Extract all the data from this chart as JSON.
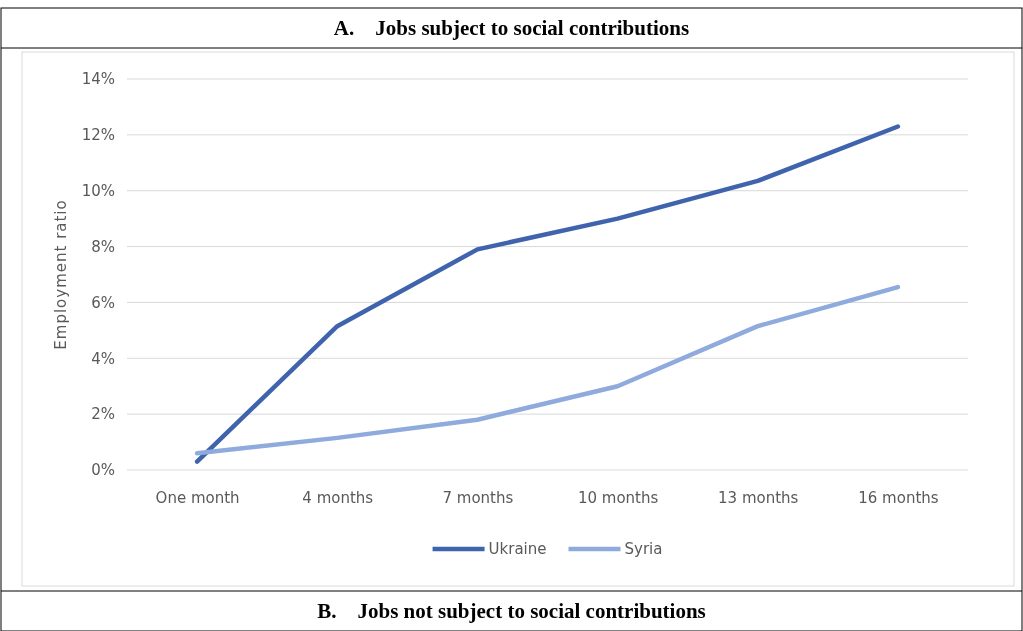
{
  "chart_data": {
    "type": "line",
    "title": "A.    Jobs subject to social contributions",
    "ylabel": "Employment ratio",
    "categories": [
      "One month",
      "4 months",
      "7 months",
      "10 months",
      "13 months",
      "16 months"
    ],
    "series": [
      {
        "name": "Ukraine",
        "color": "#3f64ad",
        "values": [
          0.3,
          5.15,
          7.9,
          9.0,
          10.35,
          12.3
        ]
      },
      {
        "name": "Syria",
        "color": "#8faadc",
        "values": [
          0.6,
          1.15,
          1.8,
          3.0,
          5.15,
          6.55
        ]
      }
    ],
    "ylim": [
      0,
      14
    ],
    "yticks": [
      {
        "value": 0,
        "label": "0%"
      },
      {
        "value": 2,
        "label": "2%"
      },
      {
        "value": 4,
        "label": "4%"
      },
      {
        "value": 6,
        "label": "6%"
      },
      {
        "value": 8,
        "label": "8%"
      },
      {
        "value": 10,
        "label": "10%"
      },
      {
        "value": 12,
        "label": "12%"
      },
      {
        "value": 14,
        "label": "14%"
      }
    ],
    "grid": "y",
    "legend": "bottom",
    "marker": "none",
    "line_style": "solid",
    "annotations": [
      "B.    Jobs not subject to social contributions"
    ]
  }
}
